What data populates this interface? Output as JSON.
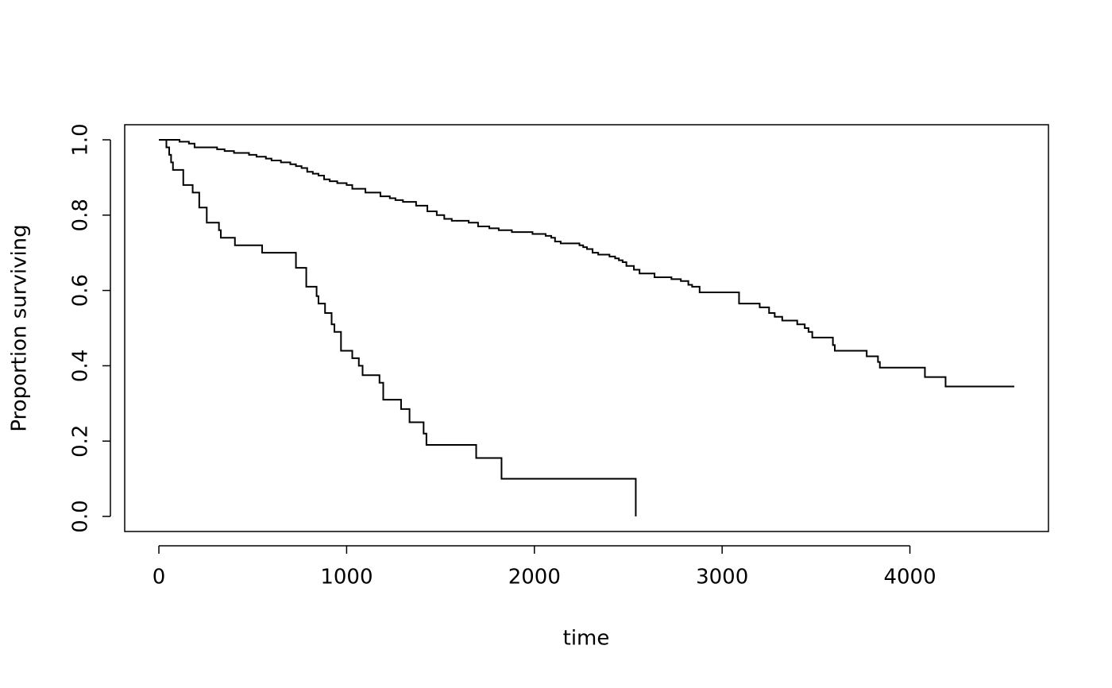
{
  "chart_data": {
    "type": "step",
    "xlabel": "time",
    "ylabel": "Proportion surviving",
    "xlim": [
      -182,
      4738
    ],
    "ylim": [
      -0.04,
      1.04
    ],
    "xticks": [
      0,
      1000,
      2000,
      3000,
      4000
    ],
    "yticks": [
      {
        "value": 0,
        "label": "0.0"
      },
      0.2,
      0.4,
      0.6,
      0.8,
      {
        "value": 1,
        "label": "1.0"
      }
    ],
    "series": [
      {
        "color": "#000000",
        "x": [
          0,
          40,
          55,
          65,
          75,
          130,
          180,
          215,
          255,
          320,
          330,
          405,
          550,
          730,
          785,
          840,
          850,
          885,
          920,
          935,
          970,
          1030,
          1065,
          1085,
          1175,
          1195,
          1290,
          1335,
          1410,
          1425,
          1690,
          1825,
          2540
        ],
        "values": [
          1,
          0.98,
          0.96,
          0.94,
          0.92,
          0.88,
          0.86,
          0.82,
          0.78,
          0.76,
          0.74,
          0.72,
          0.7,
          0.66,
          0.61,
          0.585,
          0.565,
          0.54,
          0.51,
          0.49,
          0.44,
          0.42,
          0.4,
          0.375,
          0.355,
          0.31,
          0.285,
          0.25,
          0.22,
          0.19,
          0.155,
          0.1,
          0
        ]
      },
      {
        "color": "#000000",
        "x": [
          0,
          110,
          160,
          190,
          310,
          350,
          400,
          480,
          520,
          570,
          600,
          650,
          700,
          730,
          760,
          790,
          820,
          850,
          880,
          910,
          950,
          1000,
          1030,
          1100,
          1180,
          1230,
          1260,
          1300,
          1370,
          1430,
          1480,
          1520,
          1560,
          1650,
          1700,
          1760,
          1810,
          1880,
          1990,
          2060,
          2090,
          2110,
          2140,
          2240,
          2260,
          2280,
          2310,
          2340,
          2400,
          2430,
          2450,
          2470,
          2490,
          2530,
          2560,
          2640,
          2730,
          2780,
          2820,
          2840,
          2880,
          3090,
          3200,
          3250,
          3280,
          3320,
          3400,
          3440,
          3460,
          3480,
          3590,
          3600,
          3770,
          3830,
          3840,
          4080,
          4190,
          4556
        ],
        "values": [
          1,
          0.995,
          0.99,
          0.98,
          0.975,
          0.97,
          0.965,
          0.96,
          0.955,
          0.95,
          0.945,
          0.94,
          0.935,
          0.93,
          0.925,
          0.915,
          0.91,
          0.905,
          0.895,
          0.89,
          0.885,
          0.88,
          0.87,
          0.86,
          0.85,
          0.845,
          0.84,
          0.835,
          0.825,
          0.81,
          0.8,
          0.79,
          0.785,
          0.78,
          0.77,
          0.765,
          0.76,
          0.755,
          0.75,
          0.745,
          0.74,
          0.73,
          0.725,
          0.72,
          0.715,
          0.71,
          0.7,
          0.695,
          0.69,
          0.685,
          0.68,
          0.675,
          0.665,
          0.655,
          0.645,
          0.635,
          0.63,
          0.625,
          0.615,
          0.61,
          0.595,
          0.565,
          0.555,
          0.54,
          0.53,
          0.52,
          0.51,
          0.5,
          0.49,
          0.475,
          0.455,
          0.44,
          0.425,
          0.41,
          0.395,
          0.37,
          0.345,
          0.345
        ]
      }
    ]
  }
}
